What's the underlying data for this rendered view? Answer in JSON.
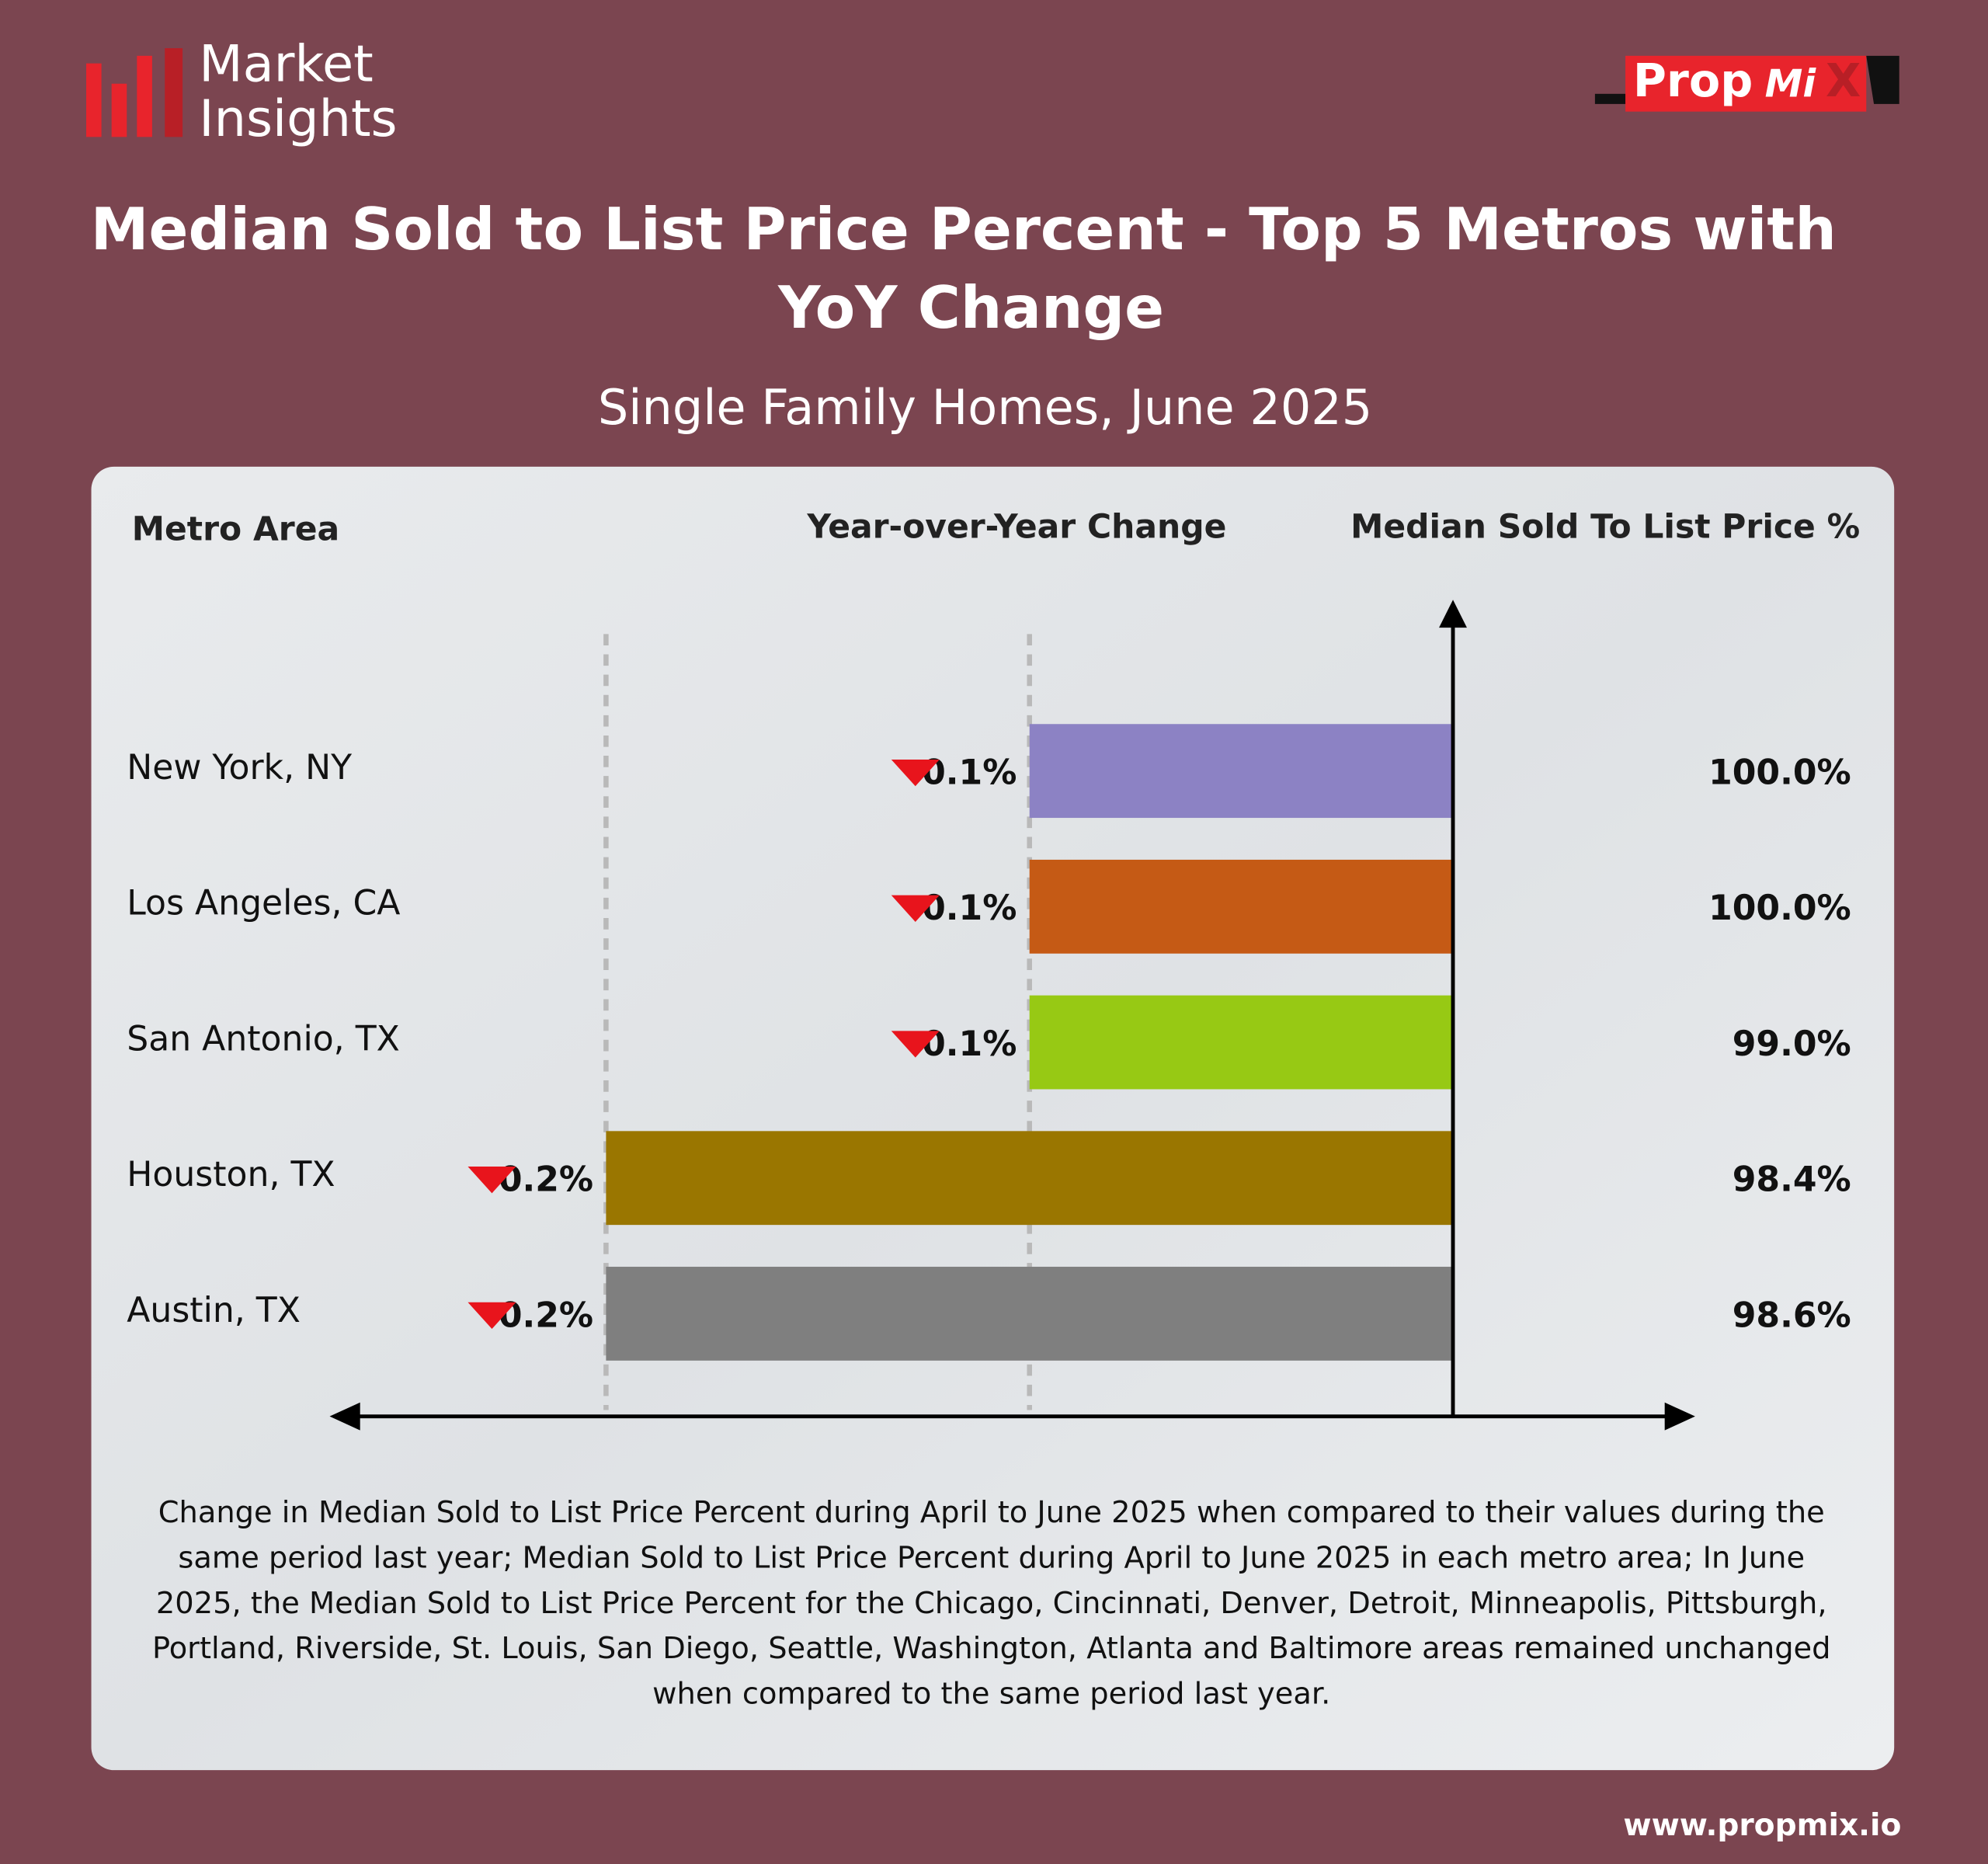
{
  "brand": {
    "logo_top": "Market",
    "logo_bottom": "Insights",
    "partner_a": "Prop",
    "partner_b": "Mi",
    "partner_c": "X",
    "website": "www.propmix.io"
  },
  "chart_data": {
    "type": "bar",
    "orientation": "horizontal",
    "title": [
      "Median Sold to List Price Percent - Top 5 Metros with",
      "YoY Change"
    ],
    "subtitle": "Single Family Homes, June 2025",
    "column_headers": [
      "Metro Area",
      "Year-over-Year Change",
      "Median Sold To List Price %"
    ],
    "categories": [
      "New York, NY",
      "Los Angeles, CA",
      "San Antonio, TX",
      "Houston, TX",
      "Austin, TX"
    ],
    "values": [
      -0.1,
      -0.1,
      -0.1,
      -0.2,
      -0.2
    ],
    "value_labels": [
      "0.1%",
      "0.1%",
      "0.1%",
      "0.2%",
      "0.2%"
    ],
    "colors": [
      "#8c82c4",
      "#c55a15",
      "#97c914",
      "#9a7600",
      "#7f7f7f"
    ],
    "median_values": [
      100.0,
      100.0,
      99.0,
      98.4,
      98.6
    ],
    "median_labels": [
      "100.0%",
      "100.0%",
      "99.0%",
      "98.4%",
      "98.6%"
    ],
    "xlim": [
      -0.2,
      0
    ],
    "xticks": [
      -0.2,
      -0.1
    ],
    "grid": true,
    "footnote": [
      "Change in Median Sold to List Price Percent during April to June 2025 when compared to their values during the",
      "same period last year; Median Sold to List Price Percent during April to June 2025 in each metro area; In June",
      "2025, the Median Sold to List Price Percent for the  Chicago, Cincinnati, Denver, Detroit, Minneapolis, Pittsburgh,",
      "Portland, Riverside, St. Louis, San Diego, Seattle, Washington, Atlanta and Baltimore areas remained unchanged",
      "when compared to the same period last year."
    ]
  }
}
